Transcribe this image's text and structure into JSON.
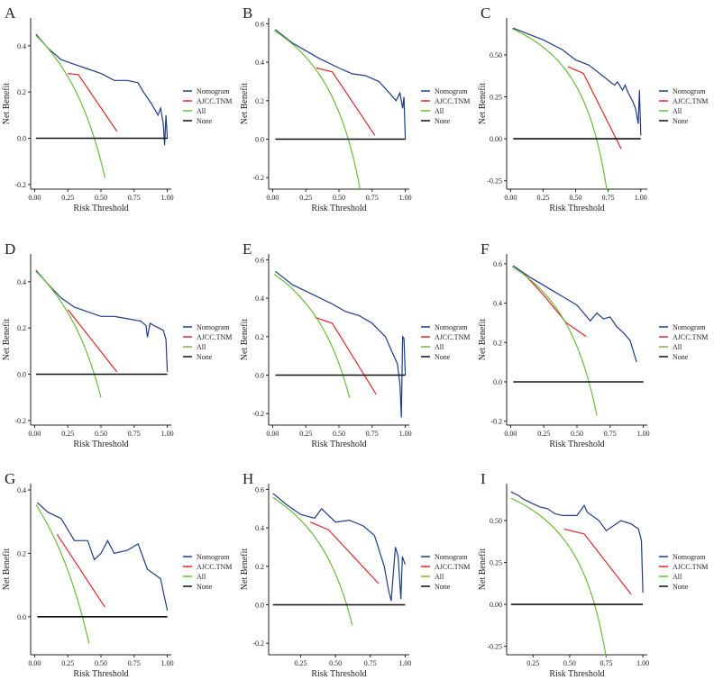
{
  "chart_data": [
    {
      "panel": "A",
      "type": "line",
      "xlabel": "Risk Threshold",
      "ylabel": "Net Benefit",
      "xlim": [
        -0.03,
        1.03
      ],
      "ylim": [
        -0.22,
        0.52
      ],
      "xticks": [
        "0.00",
        "0.25",
        "0.50",
        "0.75",
        "1.00"
      ],
      "xtick_values": [
        0,
        0.25,
        0.5,
        0.75,
        1
      ],
      "yticks": [
        "-0.2",
        "0.0",
        "0.2",
        "0.4"
      ],
      "ytick_values": [
        -0.2,
        0,
        0.2,
        0.4
      ],
      "series": [
        {
          "name": "Nomogram",
          "x": [
            0.01,
            0.1,
            0.2,
            0.3,
            0.4,
            0.5,
            0.6,
            0.7,
            0.78,
            0.82,
            0.88,
            0.93,
            0.95,
            0.97,
            0.98,
            0.99,
            1.0
          ],
          "y": [
            0.45,
            0.39,
            0.34,
            0.32,
            0.3,
            0.28,
            0.25,
            0.25,
            0.24,
            0.2,
            0.15,
            0.1,
            0.13,
            0.06,
            -0.03,
            0.1,
            0.0
          ]
        },
        {
          "name": "AJCC.TNM",
          "x": [
            0.25,
            0.33,
            0.62
          ],
          "y": [
            0.28,
            0.275,
            0.03
          ]
        },
        {
          "name": "All",
          "prevalence": 0.45,
          "xmax": 0.53
        },
        {
          "name": "None",
          "x": [
            0.01,
            1.0
          ],
          "y": [
            0,
            0
          ]
        }
      ]
    },
    {
      "panel": "B",
      "type": "line",
      "xlabel": "Risk Threshold",
      "ylabel": "Net Benefit",
      "xlim": [
        -0.03,
        1.03
      ],
      "ylim": [
        -0.26,
        0.63
      ],
      "xticks": [
        "0.00",
        "0.25",
        "0.50",
        "0.75",
        "1.00"
      ],
      "xtick_values": [
        0,
        0.25,
        0.5,
        0.75,
        1
      ],
      "yticks": [
        "-0.2",
        "0.0",
        "0.2",
        "0.4",
        "0.6"
      ],
      "ytick_values": [
        -0.2,
        0,
        0.2,
        0.4,
        0.6
      ],
      "series": [
        {
          "name": "Nomogram",
          "x": [
            0.02,
            0.15,
            0.25,
            0.35,
            0.5,
            0.6,
            0.7,
            0.8,
            0.88,
            0.93,
            0.96,
            0.98,
            0.99,
            1.0
          ],
          "y": [
            0.57,
            0.5,
            0.46,
            0.42,
            0.37,
            0.34,
            0.33,
            0.3,
            0.24,
            0.2,
            0.24,
            0.16,
            0.22,
            0.0
          ]
        },
        {
          "name": "AJCC.TNM",
          "x": [
            0.33,
            0.45,
            0.77
          ],
          "y": [
            0.37,
            0.35,
            0.02
          ]
        },
        {
          "name": "All",
          "prevalence": 0.57,
          "xmax": 0.66
        },
        {
          "name": "None",
          "x": [
            0.02,
            1.0
          ],
          "y": [
            0,
            0
          ]
        }
      ]
    },
    {
      "panel": "C",
      "type": "line",
      "xlabel": "Risk Threshold",
      "ylabel": "Net Benefit",
      "xlim": [
        -0.03,
        1.05
      ],
      "ylim": [
        -0.3,
        0.72
      ],
      "xticks": [
        "0.00",
        "0.25",
        "0.50",
        "0.75",
        "1.00"
      ],
      "xtick_values": [
        0,
        0.25,
        0.5,
        0.75,
        1
      ],
      "yticks": [
        "-0.25",
        "0.00",
        "0.25",
        "0.50"
      ],
      "ytick_values": [
        -0.25,
        0,
        0.25,
        0.5
      ],
      "series": [
        {
          "name": "Nomogram",
          "x": [
            0.02,
            0.15,
            0.25,
            0.4,
            0.5,
            0.6,
            0.7,
            0.78,
            0.8,
            0.82,
            0.86,
            0.88,
            0.9,
            0.94,
            0.96,
            0.98,
            0.99,
            1.0
          ],
          "y": [
            0.66,
            0.62,
            0.59,
            0.53,
            0.47,
            0.44,
            0.38,
            0.33,
            0.32,
            0.34,
            0.29,
            0.32,
            0.28,
            0.22,
            0.18,
            0.09,
            0.29,
            0.02
          ]
        },
        {
          "name": "AJCC.TNM",
          "x": [
            0.44,
            0.56,
            0.85
          ],
          "y": [
            0.43,
            0.39,
            -0.06
          ]
        },
        {
          "name": "All",
          "prevalence": 0.66,
          "xmax": 0.74
        },
        {
          "name": "None",
          "x": [
            0.02,
            1.0
          ],
          "y": [
            0,
            0
          ]
        }
      ]
    },
    {
      "panel": "D",
      "type": "line",
      "xlabel": "Risk Threshold",
      "ylabel": "Net Benefit",
      "xlim": [
        -0.03,
        1.03
      ],
      "ylim": [
        -0.22,
        0.52
      ],
      "xticks": [
        "0.00",
        "0.25",
        "0.50",
        "0.75",
        "1.00"
      ],
      "xtick_values": [
        0,
        0.25,
        0.5,
        0.75,
        1
      ],
      "yticks": [
        "-0.2",
        "0.0",
        "0.2",
        "0.4"
      ],
      "ytick_values": [
        -0.2,
        0,
        0.2,
        0.4
      ],
      "series": [
        {
          "name": "Nomogram",
          "x": [
            0.01,
            0.1,
            0.2,
            0.3,
            0.4,
            0.5,
            0.6,
            0.7,
            0.8,
            0.84,
            0.85,
            0.87,
            0.9,
            0.97,
            0.99,
            1.0
          ],
          "y": [
            0.45,
            0.39,
            0.33,
            0.29,
            0.27,
            0.25,
            0.25,
            0.24,
            0.23,
            0.21,
            0.16,
            0.22,
            0.21,
            0.19,
            0.15,
            0.01
          ]
        },
        {
          "name": "AJCC.TNM",
          "x": [
            0.25,
            0.62
          ],
          "y": [
            0.28,
            0.01
          ]
        },
        {
          "name": "All",
          "prevalence": 0.45,
          "xmax": 0.5
        },
        {
          "name": "None",
          "x": [
            0.01,
            1.0
          ],
          "y": [
            0,
            0
          ]
        }
      ]
    },
    {
      "panel": "E",
      "type": "line",
      "xlabel": "Risk Threshold",
      "ylabel": "Net Benefit",
      "xlim": [
        -0.03,
        1.03
      ],
      "ylim": [
        -0.26,
        0.63
      ],
      "xticks": [
        "0.00",
        "0.25",
        "0.50",
        "0.75",
        "1.00"
      ],
      "xtick_values": [
        0,
        0.25,
        0.5,
        0.75,
        1
      ],
      "yticks": [
        "-0.2",
        "0.0",
        "0.2",
        "0.4",
        "0.6"
      ],
      "ytick_values": [
        -0.2,
        0,
        0.2,
        0.4,
        0.6
      ],
      "series": [
        {
          "name": "Nomogram",
          "x": [
            0.02,
            0.15,
            0.3,
            0.45,
            0.55,
            0.65,
            0.75,
            0.85,
            0.9,
            0.94,
            0.96,
            0.97,
            0.98,
            0.99,
            1.0
          ],
          "y": [
            0.54,
            0.47,
            0.42,
            0.37,
            0.33,
            0.31,
            0.27,
            0.2,
            0.12,
            0.06,
            -0.05,
            -0.22,
            0.2,
            0.19,
            0.0
          ]
        },
        {
          "name": "AJCC.TNM",
          "x": [
            0.32,
            0.45,
            0.78
          ],
          "y": [
            0.3,
            0.27,
            -0.1
          ]
        },
        {
          "name": "All",
          "prevalence": 0.53,
          "xmax": 0.58
        },
        {
          "name": "None",
          "x": [
            0.02,
            1.0
          ],
          "y": [
            0,
            0
          ]
        }
      ]
    },
    {
      "panel": "F",
      "type": "line",
      "xlabel": "Risk Threshold",
      "ylabel": "Net Benefit",
      "xlim": [
        -0.03,
        1.03
      ],
      "ylim": [
        -0.22,
        0.65
      ],
      "xticks": [
        "0.00",
        "0.25",
        "0.50",
        "0.75",
        "1.00"
      ],
      "xtick_values": [
        0,
        0.25,
        0.5,
        0.75,
        1
      ],
      "yticks": [
        "-0.2",
        "0.0",
        "0.2",
        "0.4",
        "0.6"
      ],
      "ytick_values": [
        -0.2,
        0,
        0.2,
        0.4,
        0.6
      ],
      "series": [
        {
          "name": "Nomogram",
          "x": [
            0.02,
            0.15,
            0.3,
            0.4,
            0.5,
            0.55,
            0.6,
            0.65,
            0.7,
            0.75,
            0.8,
            0.85,
            0.9,
            0.95
          ],
          "y": [
            0.59,
            0.53,
            0.47,
            0.43,
            0.39,
            0.35,
            0.31,
            0.35,
            0.32,
            0.33,
            0.28,
            0.25,
            0.21,
            0.1
          ]
        },
        {
          "name": "AJCC.TNM",
          "x": [
            0.1,
            0.25,
            0.42,
            0.57
          ],
          "y": [
            0.55,
            0.44,
            0.3,
            0.23
          ]
        },
        {
          "name": "All",
          "prevalence": 0.59,
          "xmax": 0.65
        },
        {
          "name": "None",
          "x": [
            0.02,
            1.0
          ],
          "y": [
            0,
            0
          ]
        }
      ]
    },
    {
      "panel": "G",
      "type": "line",
      "xlabel": "Risk Threshold",
      "ylabel": "Net Benefit",
      "xlim": [
        -0.03,
        1.03
      ],
      "ylim": [
        -0.12,
        0.42
      ],
      "xticks": [
        "0.00",
        "0.25",
        "0.50",
        "0.75",
        "1.00"
      ],
      "xtick_values": [
        0,
        0.25,
        0.5,
        0.75,
        1
      ],
      "yticks": [
        "0.0",
        "0.2",
        "0.4"
      ],
      "ytick_values": [
        0,
        0.2,
        0.4
      ],
      "series": [
        {
          "name": "Nomogram",
          "x": [
            0.02,
            0.1,
            0.2,
            0.3,
            0.4,
            0.45,
            0.5,
            0.55,
            0.6,
            0.7,
            0.78,
            0.85,
            0.95,
            0.98,
            1.0
          ],
          "y": [
            0.36,
            0.33,
            0.31,
            0.24,
            0.24,
            0.18,
            0.2,
            0.24,
            0.2,
            0.21,
            0.23,
            0.15,
            0.12,
            0.06,
            0.02
          ]
        },
        {
          "name": "AJCC.TNM",
          "x": [
            0.17,
            0.53
          ],
          "y": [
            0.26,
            0.03
          ]
        },
        {
          "name": "All",
          "prevalence": 0.36,
          "xmax": 0.41
        },
        {
          "name": "None",
          "x": [
            0.02,
            1.0
          ],
          "y": [
            0,
            0
          ]
        }
      ]
    },
    {
      "panel": "H",
      "type": "line",
      "xlabel": "Risk Threshold",
      "ylabel": "Net Benefit",
      "xlim": [
        0.02,
        1.03
      ],
      "ylim": [
        -0.26,
        0.63
      ],
      "xticks": [
        "0.25",
        "0.50",
        "0.75",
        "1.00"
      ],
      "xtick_values": [
        0.25,
        0.5,
        0.75,
        1
      ],
      "yticks": [
        "-0.2",
        "0.0",
        "0.2",
        "0.4",
        "0.6"
      ],
      "ytick_values": [
        -0.2,
        0,
        0.2,
        0.4,
        0.6
      ],
      "series": [
        {
          "name": "Nomogram",
          "x": [
            0.05,
            0.15,
            0.25,
            0.35,
            0.4,
            0.5,
            0.6,
            0.7,
            0.78,
            0.85,
            0.88,
            0.9,
            0.93,
            0.95,
            0.97,
            0.98,
            1.0
          ],
          "y": [
            0.58,
            0.52,
            0.47,
            0.45,
            0.5,
            0.43,
            0.44,
            0.41,
            0.36,
            0.2,
            0.08,
            0.02,
            0.3,
            0.25,
            0.03,
            0.25,
            0.21
          ]
        },
        {
          "name": "AJCC.TNM",
          "x": [
            0.32,
            0.45,
            0.81
          ],
          "y": [
            0.43,
            0.39,
            0.11
          ]
        },
        {
          "name": "All",
          "prevalence": 0.58,
          "xmax": 0.62
        },
        {
          "name": "None",
          "x": [
            0.05,
            1.0
          ],
          "y": [
            0,
            0
          ]
        }
      ]
    },
    {
      "panel": "I",
      "type": "line",
      "xlabel": "Risk Threshold",
      "ylabel": "Net Benefit",
      "xlim": [
        0.07,
        1.03
      ],
      "ylim": [
        -0.3,
        0.72
      ],
      "xticks": [
        "0.25",
        "0.50",
        "0.75",
        "1.00"
      ],
      "xtick_values": [
        0.25,
        0.5,
        0.75,
        1
      ],
      "yticks": [
        "-0.25",
        "0.00",
        "0.25",
        "0.50"
      ],
      "ytick_values": [
        -0.25,
        0,
        0.25,
        0.5
      ],
      "series": [
        {
          "name": "Nomogram",
          "x": [
            0.1,
            0.15,
            0.18,
            0.25,
            0.3,
            0.35,
            0.4,
            0.45,
            0.55,
            0.6,
            0.62,
            0.7,
            0.75,
            0.85,
            0.92,
            0.97,
            0.99,
            1.0
          ],
          "y": [
            0.67,
            0.65,
            0.63,
            0.6,
            0.58,
            0.57,
            0.54,
            0.53,
            0.53,
            0.59,
            0.55,
            0.5,
            0.44,
            0.5,
            0.48,
            0.45,
            0.38,
            0.07
          ]
        },
        {
          "name": "AJCC.TNM",
          "x": [
            0.46,
            0.6,
            0.92
          ],
          "y": [
            0.45,
            0.42,
            0.06
          ]
        },
        {
          "name": "All",
          "prevalence": 0.67,
          "xmax": 0.75
        },
        {
          "name": "None",
          "x": [
            0.1,
            1.0
          ],
          "y": [
            0,
            0
          ]
        }
      ]
    }
  ],
  "legend": {
    "placement": "right",
    "entries": [
      "Nomogram",
      "AJCC.TNM",
      "All",
      "None"
    ]
  },
  "colors": {
    "Nomogram": "#1f3c88",
    "AJCC.TNM": "#e0262b",
    "All": "#6cbb3c",
    "None": "#111111"
  }
}
